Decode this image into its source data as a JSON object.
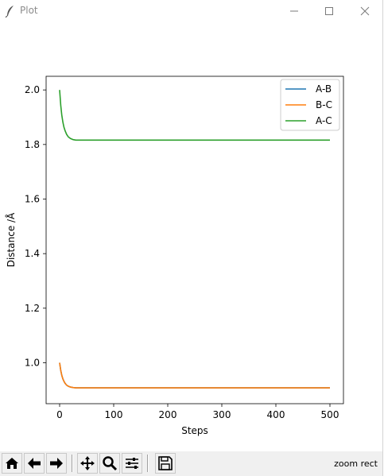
{
  "window": {
    "title": "Plot",
    "controls": {
      "minimize": "minimize-icon",
      "maximize": "maximize-icon",
      "close": "close-icon"
    }
  },
  "toolbar": {
    "buttons": [
      "home-icon",
      "back-icon",
      "forward-icon",
      "pan-icon",
      "zoom-icon",
      "subplots-icon",
      "save-icon"
    ],
    "status": "zoom rect"
  },
  "chart_data": {
    "type": "line",
    "title": "",
    "xlabel": "Steps",
    "ylabel": "Distance /Å",
    "xlim": [
      -25,
      525
    ],
    "ylim": [
      0.85,
      2.05
    ],
    "xticks": [
      0,
      100,
      200,
      300,
      400,
      500
    ],
    "xtick_labels": [
      "0",
      "100",
      "200",
      "300",
      "400",
      "500"
    ],
    "yticks": [
      1.0,
      1.2,
      1.4,
      1.6,
      1.8,
      2.0
    ],
    "ytick_labels": [
      "1.0",
      "1.2",
      "1.4",
      "1.6",
      "1.8",
      "2.0"
    ],
    "grid": false,
    "legend_position": "top-right",
    "x": [
      0,
      2,
      4,
      6,
      8,
      10,
      13,
      16,
      20,
      25,
      30,
      40,
      60,
      100,
      200,
      300,
      400,
      500
    ],
    "series": [
      {
        "name": "A-B",
        "color": "#1f77b4",
        "values": [
          1.0,
          0.972,
          0.954,
          0.941,
          0.932,
          0.925,
          0.918,
          0.914,
          0.911,
          0.909,
          0.908,
          0.908,
          0.908,
          0.908,
          0.908,
          0.908,
          0.908,
          0.908
        ]
      },
      {
        "name": "B-C",
        "color": "#ff7f0e",
        "values": [
          1.0,
          0.972,
          0.954,
          0.941,
          0.932,
          0.925,
          0.918,
          0.914,
          0.911,
          0.909,
          0.908,
          0.908,
          0.908,
          0.908,
          0.908,
          0.908,
          0.908,
          0.908
        ]
      },
      {
        "name": "A-C",
        "color": "#2ca02c",
        "values": [
          2.0,
          1.944,
          1.908,
          1.882,
          1.864,
          1.851,
          1.837,
          1.828,
          1.822,
          1.818,
          1.816,
          1.816,
          1.816,
          1.816,
          1.816,
          1.816,
          1.816,
          1.816
        ]
      }
    ]
  }
}
